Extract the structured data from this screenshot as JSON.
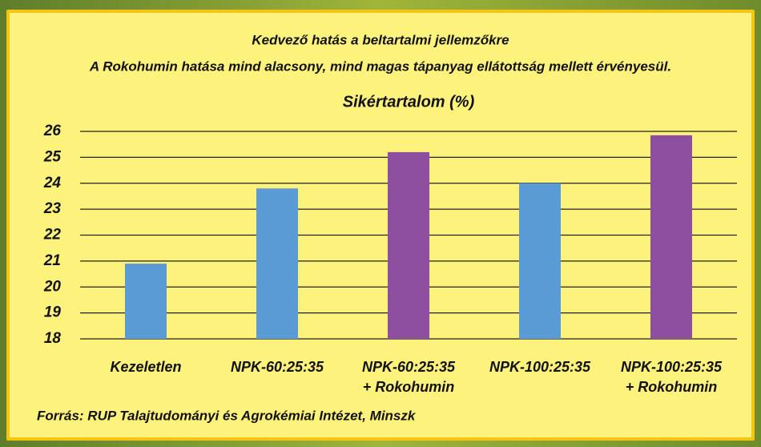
{
  "chart_data": {
    "type": "bar",
    "title": "Kedvező hatás a beltartalmi jellemzőkre",
    "subtitle": "A Rokohumin hatása mind alacsony, mind magas tápanyag ellátottság mellett érvényesül.",
    "chart_title": "Sikértartalom (%)",
    "categories": [
      "Kezeletlen",
      "NPK-60:25:35",
      "NPK-60:25:35\n+ Rokohumin",
      "NPK-100:25:35",
      "NPK-100:25:35\n+ Rokohumin"
    ],
    "values": [
      20.9,
      23.8,
      25.2,
      24.0,
      25.85
    ],
    "colors": [
      "#5b9bd5",
      "#5b9bd5",
      "#8e4fa0",
      "#5b9bd5",
      "#8e4fa0"
    ],
    "ylim": [
      18,
      26
    ],
    "yticks": [
      18,
      19,
      20,
      21,
      22,
      23,
      24,
      25,
      26
    ],
    "grid": true,
    "source": "Forrás: RUP Talajtudományi és Agrokémiai Intézet, Minszk"
  }
}
